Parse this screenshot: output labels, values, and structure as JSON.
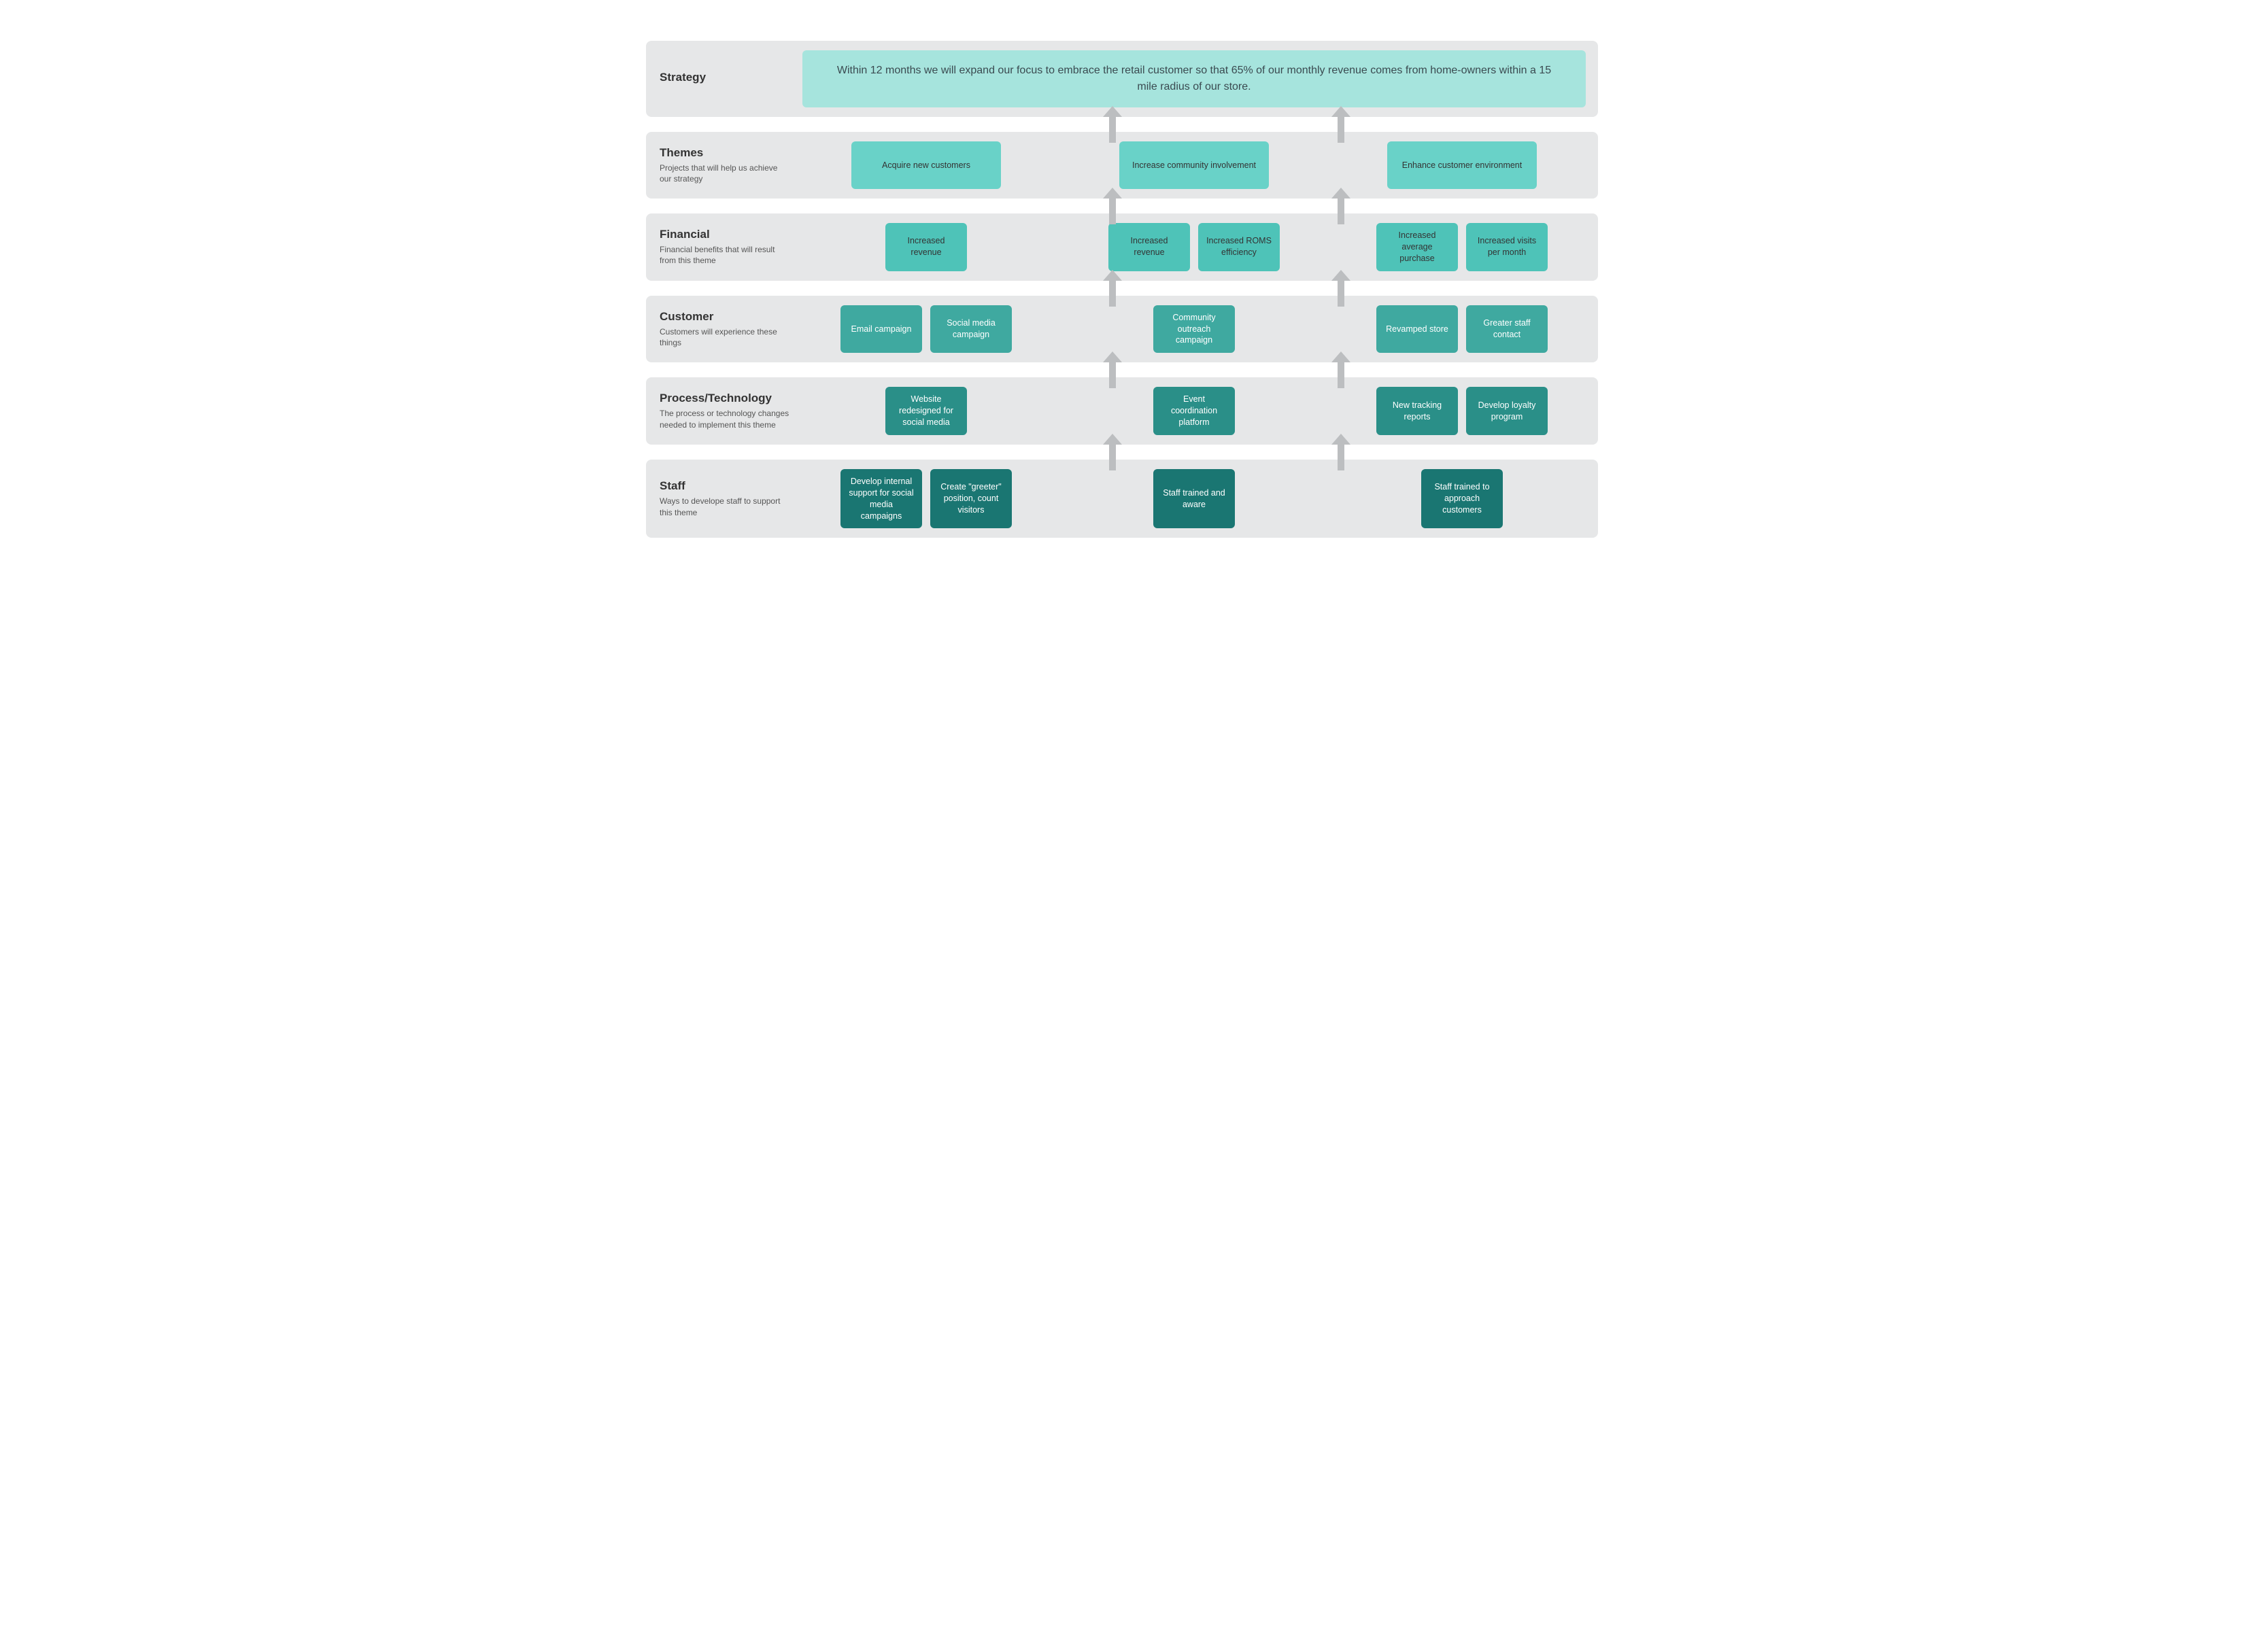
{
  "colors": {
    "row_bg": "#e6e7e8",
    "arrow": "#bcbec0",
    "text_dark": "#333333",
    "text_light": "#ffffff",
    "strategy_bg": "#a6e4dd",
    "strategy_text": "#3a4a50",
    "themes_bg": "#69d2c8",
    "financial_bg": "#4ec3b8",
    "customer_bg": "#3fa9a0",
    "process_bg": "#2a8f88",
    "staff_bg": "#1a7672"
  },
  "arrows": {
    "left_pct": 49,
    "right_pct": 73,
    "height": 56,
    "shaft_width": 10,
    "head_width": 28
  },
  "rows": [
    {
      "key": "strategy",
      "title": "Strategy",
      "subtitle": "",
      "type": "strategy",
      "card_color": "strategy_bg",
      "text_color": "strategy_text",
      "text": "Within 12 months we will expand our focus to embrace the retail customer so that 65% of our monthly revenue comes from home-owners within a 15 mile radius of our store."
    },
    {
      "key": "themes",
      "title": "Themes",
      "subtitle": "Projects that will help us achieve our strategy",
      "card_color": "themes_bg",
      "text_color": "text_dark",
      "card_size": "wide",
      "columns": [
        [
          "Acquire new customers"
        ],
        [
          "Increase community involvement"
        ],
        [
          "Enhance customer environment"
        ]
      ]
    },
    {
      "key": "financial",
      "title": "Financial",
      "subtitle": "Financial benefits that will result from this theme",
      "card_color": "financial_bg",
      "text_color": "text_dark",
      "card_size": "small",
      "columns": [
        [
          "Increased revenue"
        ],
        [
          "Increased revenue",
          "Increased ROMS efficiency"
        ],
        [
          "Increased average purchase",
          "Increased visits per month"
        ]
      ]
    },
    {
      "key": "customer",
      "title": "Customer",
      "subtitle": "Customers will experience these things",
      "card_color": "customer_bg",
      "text_color": "text_light",
      "card_size": "small",
      "columns": [
        [
          "Email campaign",
          "Social media campaign"
        ],
        [
          "Community outreach campaign"
        ],
        [
          "Revamped store",
          "Greater staff contact"
        ]
      ]
    },
    {
      "key": "process",
      "title": "Process/Technology",
      "subtitle": "The process or technology changes needed to implement this theme",
      "card_color": "process_bg",
      "text_color": "text_light",
      "card_size": "small",
      "columns": [
        [
          "Website redesigned for social media"
        ],
        [
          "Event coordination platform"
        ],
        [
          "New tracking reports",
          "Develop loyalty program"
        ]
      ]
    },
    {
      "key": "staff",
      "title": "Staff",
      "subtitle": "Ways to develope staff to support this theme",
      "card_color": "staff_bg",
      "text_color": "text_light",
      "card_size": "small",
      "columns": [
        [
          "Develop internal support for social media campaigns",
          "Create \"greeter\" position, count visitors"
        ],
        [
          "Staff trained and aware"
        ],
        [
          "Staff trained to approach customers"
        ]
      ]
    }
  ]
}
